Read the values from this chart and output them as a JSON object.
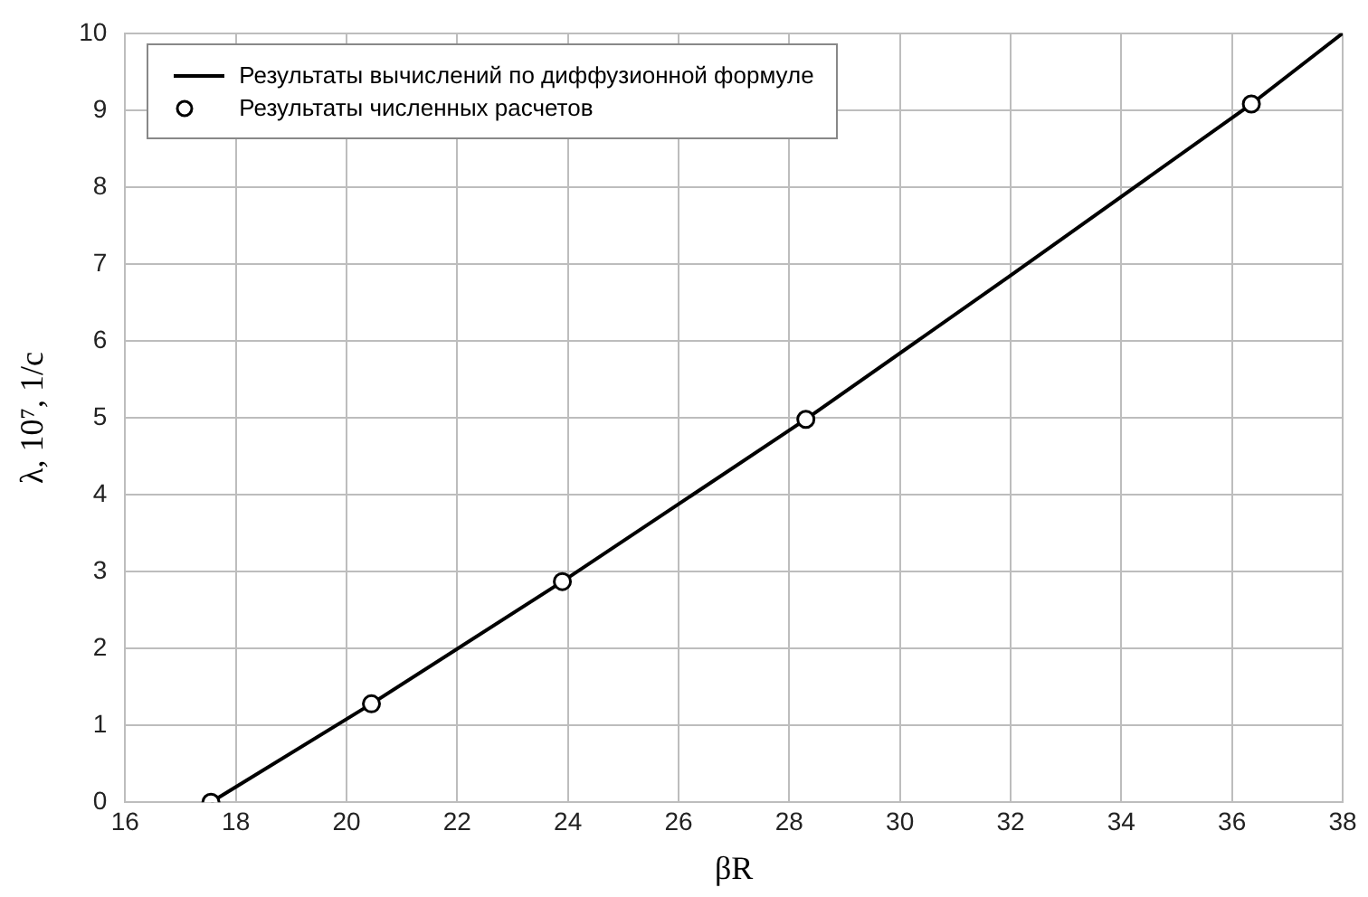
{
  "chart_data": {
    "type": "line",
    "xlabel": "βR",
    "ylabel": "λ, 10⁷, 1/с",
    "xlim": [
      16,
      38
    ],
    "xticks": [
      16,
      18,
      20,
      22,
      24,
      26,
      28,
      30,
      32,
      34,
      36,
      38
    ],
    "ylim": [
      0,
      10
    ],
    "yticks": [
      0,
      1,
      2,
      3,
      4,
      5,
      6,
      7,
      8,
      9,
      10
    ],
    "grid": true,
    "legend": "top left",
    "series": [
      {
        "name": "Результаты вычислений по диффузионной формуле",
        "marker": "none",
        "line_style": "solid",
        "color": "#000000",
        "x": [
          17.55,
          20.45,
          23.9,
          28.3,
          32,
          36.35,
          38
        ],
        "values": [
          0,
          1.28,
          2.87,
          4.98,
          6.85,
          9.08,
          10
        ]
      },
      {
        "name": "Результаты численных расчетов",
        "type": "scatter",
        "marker": "circle",
        "color": "#000000",
        "x": [
          17.55,
          20.45,
          23.9,
          28.3,
          36.35
        ],
        "values": [
          0,
          1.28,
          2.87,
          4.98,
          9.08
        ]
      }
    ]
  }
}
